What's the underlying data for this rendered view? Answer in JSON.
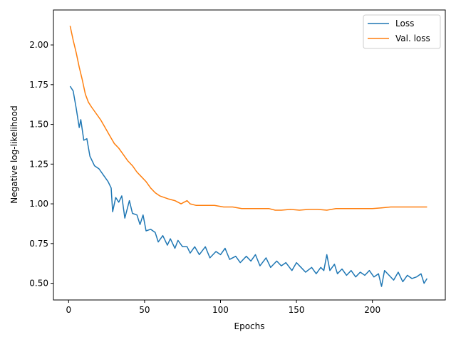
{
  "chart_data": {
    "type": "line",
    "title": "",
    "xlabel": "Epochs",
    "ylabel": "Negative log-likelihood",
    "xlim": [
      -10,
      248
    ],
    "ylim": [
      0.395,
      2.22
    ],
    "xticks": [
      0,
      50,
      100,
      150,
      200
    ],
    "xtick_labels": [
      "0",
      "50",
      "100",
      "150",
      "200"
    ],
    "yticks": [
      0.5,
      0.75,
      1.0,
      1.25,
      1.5,
      1.75,
      2.0
    ],
    "ytick_labels": [
      "0.50",
      "0.75",
      "1.00",
      "1.25",
      "1.50",
      "1.75",
      "2.00"
    ],
    "grid": false,
    "legend_position": "top-right",
    "series": [
      {
        "name": "Loss",
        "color": "#1f77b4",
        "points": [
          [
            1,
            1.74
          ],
          [
            3,
            1.71
          ],
          [
            5,
            1.6
          ],
          [
            7,
            1.48
          ],
          [
            8,
            1.53
          ],
          [
            10,
            1.4
          ],
          [
            12,
            1.41
          ],
          [
            14,
            1.3
          ],
          [
            17,
            1.24
          ],
          [
            20,
            1.22
          ],
          [
            23,
            1.18
          ],
          [
            26,
            1.14
          ],
          [
            28,
            1.1
          ],
          [
            29,
            0.95
          ],
          [
            31,
            1.04
          ],
          [
            33,
            1.01
          ],
          [
            35,
            1.05
          ],
          [
            37,
            0.91
          ],
          [
            40,
            1.02
          ],
          [
            42,
            0.94
          ],
          [
            45,
            0.93
          ],
          [
            47,
            0.87
          ],
          [
            49,
            0.93
          ],
          [
            51,
            0.83
          ],
          [
            54,
            0.84
          ],
          [
            57,
            0.82
          ],
          [
            59,
            0.76
          ],
          [
            62,
            0.8
          ],
          [
            65,
            0.74
          ],
          [
            67,
            0.78
          ],
          [
            70,
            0.72
          ],
          [
            72,
            0.77
          ],
          [
            75,
            0.73
          ],
          [
            78,
            0.73
          ],
          [
            80,
            0.69
          ],
          [
            83,
            0.73
          ],
          [
            86,
            0.68
          ],
          [
            90,
            0.73
          ],
          [
            93,
            0.66
          ],
          [
            97,
            0.7
          ],
          [
            100,
            0.68
          ],
          [
            103,
            0.72
          ],
          [
            106,
            0.65
          ],
          [
            110,
            0.67
          ],
          [
            113,
            0.63
          ],
          [
            117,
            0.67
          ],
          [
            120,
            0.64
          ],
          [
            123,
            0.68
          ],
          [
            126,
            0.61
          ],
          [
            130,
            0.66
          ],
          [
            133,
            0.6
          ],
          [
            137,
            0.64
          ],
          [
            140,
            0.61
          ],
          [
            143,
            0.63
          ],
          [
            147,
            0.58
          ],
          [
            150,
            0.63
          ],
          [
            153,
            0.6
          ],
          [
            156,
            0.57
          ],
          [
            160,
            0.6
          ],
          [
            163,
            0.56
          ],
          [
            166,
            0.6
          ],
          [
            168,
            0.58
          ],
          [
            170,
            0.68
          ],
          [
            172,
            0.58
          ],
          [
            175,
            0.62
          ],
          [
            177,
            0.56
          ],
          [
            180,
            0.59
          ],
          [
            183,
            0.55
          ],
          [
            186,
            0.58
          ],
          [
            189,
            0.54
          ],
          [
            192,
            0.57
          ],
          [
            195,
            0.55
          ],
          [
            198,
            0.58
          ],
          [
            201,
            0.54
          ],
          [
            204,
            0.56
          ],
          [
            206,
            0.48
          ],
          [
            208,
            0.58
          ],
          [
            211,
            0.55
          ],
          [
            214,
            0.52
          ],
          [
            217,
            0.57
          ],
          [
            220,
            0.51
          ],
          [
            223,
            0.55
          ],
          [
            226,
            0.53
          ],
          [
            229,
            0.54
          ],
          [
            232,
            0.56
          ],
          [
            234,
            0.5
          ],
          [
            236,
            0.53
          ]
        ]
      },
      {
        "name": "Val. loss",
        "color": "#ff7f0e",
        "points": [
          [
            1,
            2.12
          ],
          [
            3,
            2.03
          ],
          [
            5,
            1.95
          ],
          [
            7,
            1.86
          ],
          [
            9,
            1.78
          ],
          [
            11,
            1.69
          ],
          [
            13,
            1.64
          ],
          [
            15,
            1.61
          ],
          [
            18,
            1.57
          ],
          [
            21,
            1.53
          ],
          [
            24,
            1.48
          ],
          [
            27,
            1.43
          ],
          [
            30,
            1.38
          ],
          [
            33,
            1.35
          ],
          [
            36,
            1.31
          ],
          [
            39,
            1.27
          ],
          [
            42,
            1.24
          ],
          [
            45,
            1.2
          ],
          [
            48,
            1.17
          ],
          [
            51,
            1.14
          ],
          [
            54,
            1.1
          ],
          [
            57,
            1.07
          ],
          [
            60,
            1.05
          ],
          [
            63,
            1.04
          ],
          [
            66,
            1.03
          ],
          [
            70,
            1.02
          ],
          [
            74,
            1.0
          ],
          [
            78,
            1.02
          ],
          [
            80,
            1.0
          ],
          [
            84,
            0.99
          ],
          [
            90,
            0.99
          ],
          [
            96,
            0.99
          ],
          [
            102,
            0.98
          ],
          [
            108,
            0.98
          ],
          [
            114,
            0.97
          ],
          [
            120,
            0.97
          ],
          [
            126,
            0.97
          ],
          [
            132,
            0.97
          ],
          [
            136,
            0.96
          ],
          [
            140,
            0.96
          ],
          [
            146,
            0.965
          ],
          [
            152,
            0.96
          ],
          [
            158,
            0.965
          ],
          [
            164,
            0.965
          ],
          [
            170,
            0.96
          ],
          [
            176,
            0.97
          ],
          [
            182,
            0.97
          ],
          [
            188,
            0.97
          ],
          [
            194,
            0.97
          ],
          [
            200,
            0.97
          ],
          [
            206,
            0.975
          ],
          [
            212,
            0.98
          ],
          [
            218,
            0.98
          ],
          [
            224,
            0.98
          ],
          [
            230,
            0.98
          ],
          [
            236,
            0.98
          ]
        ]
      }
    ]
  }
}
